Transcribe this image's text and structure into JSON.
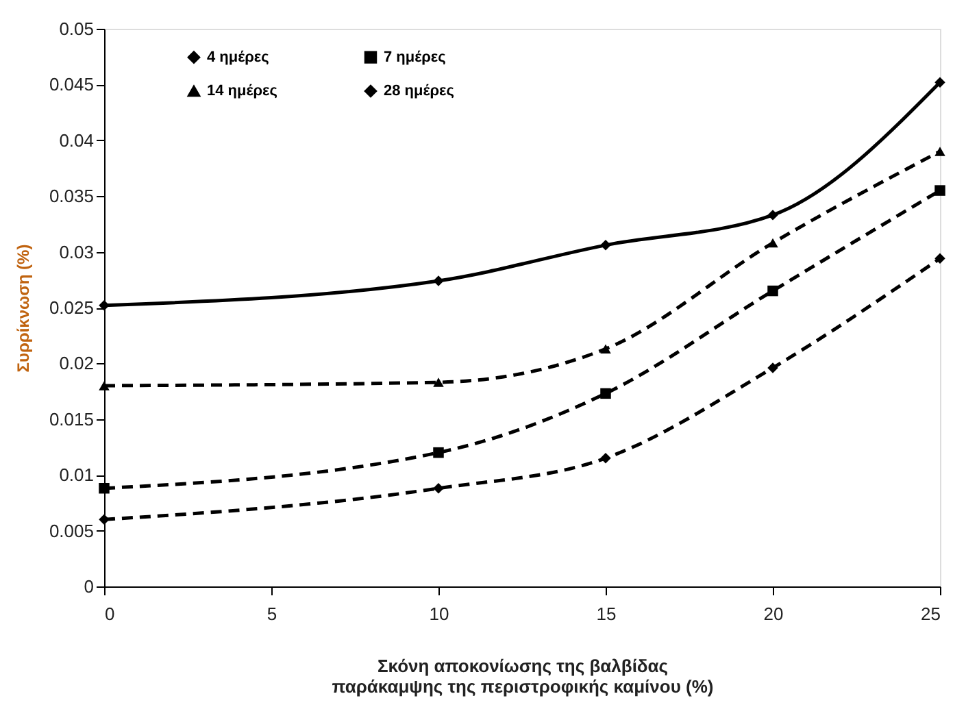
{
  "chart_data": {
    "type": "line",
    "xlabel": "Σκόνη αποκονίωσης της βαλβίδας\nπαράκαμψης της περιστροφικής καμίνου (%)",
    "ylabel": "Συρρίκνωση (%)",
    "x": [
      0,
      10,
      15,
      20,
      25
    ],
    "series": [
      {
        "name": "4 ημέρες",
        "color": "#000000",
        "marker": "diamond",
        "line_style": "dashed",
        "values": [
          0.006,
          0.0088,
          0.0115,
          0.0196,
          0.0294
        ]
      },
      {
        "name": "7 ημέρες",
        "color": "#000000",
        "marker": "square",
        "line_style": "dashed",
        "values": [
          0.0088,
          0.012,
          0.0173,
          0.0265,
          0.0355
        ]
      },
      {
        "name": "14 ημέρες",
        "color": "#000000",
        "marker": "triangle",
        "line_style": "dashed",
        "values": [
          0.018,
          0.0183,
          0.0213,
          0.0308,
          0.039
        ]
      },
      {
        "name": "28 ημέρες",
        "color": "#000000",
        "marker": "diamond",
        "line_style": "solid",
        "values": [
          0.0252,
          0.0274,
          0.0306,
          0.0333,
          0.0452
        ]
      }
    ],
    "xlim": [
      0,
      25
    ],
    "xticks": [
      0,
      5,
      10,
      15,
      20,
      25
    ],
    "ylim": [
      0,
      0.05
    ],
    "yticks": [
      0,
      0.005,
      0.01,
      0.015,
      0.02,
      0.025,
      0.03,
      0.035,
      0.04,
      0.045,
      0.05
    ],
    "grid": false,
    "legend": "top left"
  }
}
